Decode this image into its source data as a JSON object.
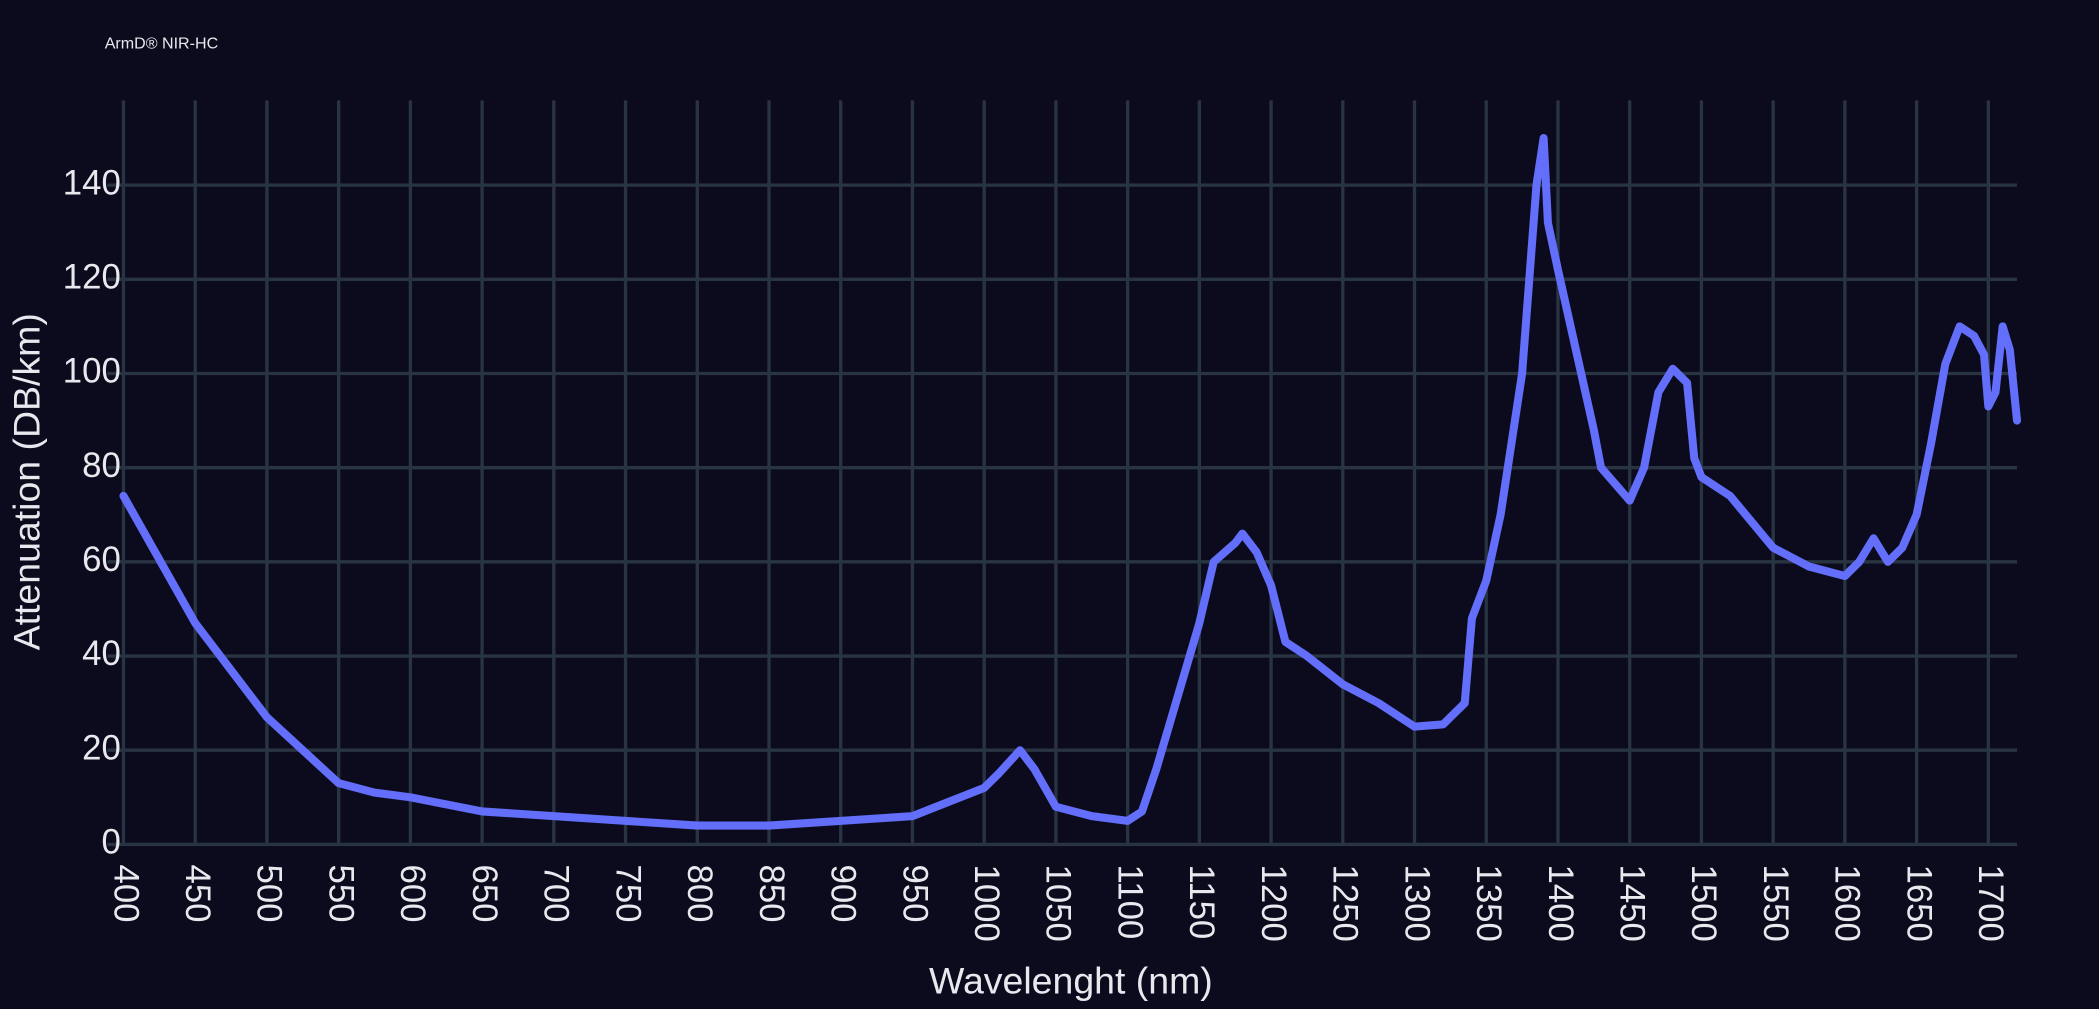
{
  "chart_data": {
    "type": "line",
    "title": "ArmD® NIR-HC",
    "x_label": "Wavelenght (nm)",
    "y_label": "Attenuation (DB/km)",
    "xlim": [
      400,
      1720
    ],
    "ylim": [
      0,
      158
    ],
    "xticks": [
      400,
      450,
      500,
      550,
      600,
      650,
      700,
      750,
      800,
      850,
      900,
      950,
      1000,
      1050,
      1100,
      1150,
      1200,
      1250,
      1300,
      1350,
      1400,
      1450,
      1500,
      1550,
      1600,
      1650,
      1700
    ],
    "yticks": [
      0,
      20,
      40,
      60,
      80,
      100,
      120,
      140
    ],
    "grid": true,
    "series": [
      {
        "name": "ArmD® NIR-HC",
        "color": "#636efa",
        "x": [
          400,
          450,
          500,
          550,
          575,
          600,
          650,
          700,
          750,
          800,
          850,
          900,
          950,
          1000,
          1010,
          1025,
          1035,
          1050,
          1075,
          1100,
          1110,
          1120,
          1150,
          1160,
          1175,
          1180,
          1190,
          1200,
          1210,
          1225,
          1250,
          1275,
          1300,
          1320,
          1335,
          1340,
          1350,
          1360,
          1375,
          1385,
          1390,
          1393,
          1400,
          1425,
          1430,
          1450,
          1460,
          1470,
          1480,
          1490,
          1495,
          1500,
          1520,
          1550,
          1575,
          1600,
          1610,
          1620,
          1630,
          1640,
          1650,
          1660,
          1670,
          1680,
          1690,
          1697,
          1700,
          1705,
          1710,
          1715,
          1718,
          1720
        ],
        "values": [
          74,
          47,
          27,
          13,
          11,
          10,
          7,
          6,
          5,
          4,
          4,
          5,
          6,
          12,
          15,
          20,
          16,
          8,
          6,
          5,
          7,
          16,
          47,
          60,
          64,
          66,
          62,
          55,
          43,
          40,
          34,
          30,
          25,
          25.5,
          30,
          48,
          56,
          70,
          100,
          140,
          150,
          132,
          122,
          88,
          80,
          73,
          80,
          96,
          101,
          98,
          82,
          78,
          74,
          63,
          59,
          57,
          60,
          65,
          60,
          63,
          70,
          85,
          102,
          110,
          108,
          104,
          93,
          96,
          110,
          105,
          96,
          90
        ]
      }
    ]
  }
}
